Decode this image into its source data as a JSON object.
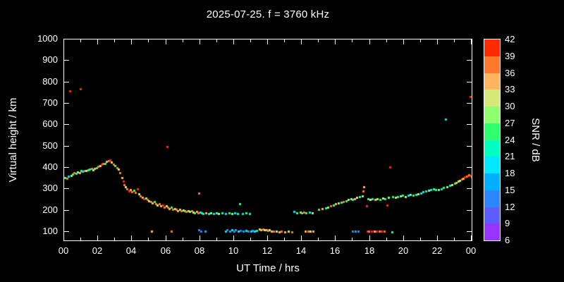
{
  "title": "2025-07-25. f = 3760 kHz",
  "colors": {
    "background": "#000000",
    "foreground": "#ffffff"
  },
  "x_axis": {
    "label": "UT Time / hrs",
    "tick_labels": [
      "00",
      "02",
      "04",
      "06",
      "08",
      "10",
      "12",
      "14",
      "16",
      "18",
      "20",
      "22",
      "00"
    ],
    "tick_hours": [
      0,
      2,
      4,
      6,
      8,
      10,
      12,
      14,
      16,
      18,
      20,
      22,
      24
    ],
    "minor_tick_hours": [
      1,
      3,
      5,
      7,
      9,
      11,
      13,
      15,
      17,
      19,
      21,
      23
    ],
    "range": [
      0,
      24
    ]
  },
  "y_axis": {
    "label": "Virtual height / km",
    "tick_values": [
      100,
      200,
      300,
      400,
      500,
      600,
      700,
      800,
      900,
      1000
    ],
    "range": [
      60,
      1000
    ]
  },
  "colorbar": {
    "label": "SNR / dB",
    "tick_values": [
      6,
      9,
      12,
      15,
      18,
      21,
      24,
      27,
      30,
      33,
      36,
      39,
      42
    ],
    "range": [
      6,
      42
    ],
    "segment_colors": [
      "#9933ff",
      "#5c5cff",
      "#2e86ff",
      "#00b0ff",
      "#00e8ff",
      "#00ffc0",
      "#2eff6e",
      "#90ff70",
      "#d6e87a",
      "#ffb45e",
      "#ff7a2e",
      "#ff2a00"
    ]
  },
  "chart_data": {
    "type": "scatter",
    "title": "2025-07-25. f = 3760 kHz",
    "xlabel": "UT Time / hrs",
    "ylabel": "Virtual height / km",
    "cblabel": "SNR / dB",
    "xlim": [
      0,
      24
    ],
    "ylim": [
      60,
      1000
    ],
    "snr_lim": [
      6,
      42
    ],
    "grid": false,
    "point_format": [
      "ut_hour",
      "virtual_height_km",
      "snr_db"
    ],
    "points": [
      [
        0.05,
        355,
        25
      ],
      [
        0.15,
        350,
        37
      ],
      [
        0.25,
        360,
        19
      ],
      [
        0.35,
        760,
        40
      ],
      [
        0.4,
        365,
        31
      ],
      [
        0.5,
        370,
        25
      ],
      [
        0.6,
        375,
        37
      ],
      [
        0.7,
        372,
        22
      ],
      [
        0.8,
        380,
        28
      ],
      [
        0.9,
        378,
        34
      ],
      [
        0.95,
        770,
        40
      ],
      [
        1.0,
        385,
        25
      ],
      [
        1.1,
        382,
        19
      ],
      [
        1.2,
        388,
        37
      ],
      [
        1.3,
        385,
        31
      ],
      [
        1.4,
        390,
        25
      ],
      [
        1.5,
        392,
        22
      ],
      [
        1.6,
        395,
        37
      ],
      [
        1.7,
        390,
        28
      ],
      [
        1.8,
        398,
        34
      ],
      [
        1.9,
        400,
        25
      ],
      [
        2.0,
        405,
        37
      ],
      [
        2.1,
        410,
        31
      ],
      [
        2.2,
        415,
        40
      ],
      [
        2.3,
        420,
        37
      ],
      [
        2.4,
        418,
        25
      ],
      [
        2.5,
        428,
        34
      ],
      [
        2.6,
        432,
        37
      ],
      [
        2.7,
        435,
        40
      ],
      [
        2.8,
        425,
        31
      ],
      [
        2.9,
        415,
        37
      ],
      [
        3.0,
        408,
        25
      ],
      [
        3.1,
        400,
        37
      ],
      [
        3.2,
        392,
        31
      ],
      [
        3.3,
        375,
        37
      ],
      [
        3.4,
        355,
        34
      ],
      [
        3.5,
        338,
        40
      ],
      [
        3.55,
        322,
        37
      ],
      [
        3.6,
        310,
        31
      ],
      [
        3.7,
        300,
        37
      ],
      [
        3.8,
        292,
        40
      ],
      [
        3.9,
        298,
        34
      ],
      [
        4.0,
        288,
        37
      ],
      [
        4.1,
        295,
        25
      ],
      [
        4.2,
        285,
        37
      ],
      [
        4.3,
        300,
        40
      ],
      [
        4.4,
        278,
        31
      ],
      [
        4.5,
        268,
        37
      ],
      [
        4.6,
        262,
        34
      ],
      [
        4.7,
        255,
        40
      ],
      [
        4.8,
        258,
        28
      ],
      [
        4.9,
        250,
        37
      ],
      [
        5.0,
        244,
        31
      ],
      [
        5.1,
        240,
        37
      ],
      [
        5.2,
        236,
        34
      ],
      [
        5.3,
        240,
        25
      ],
      [
        5.4,
        230,
        37
      ],
      [
        5.5,
        226,
        31
      ],
      [
        5.6,
        230,
        37
      ],
      [
        5.7,
        222,
        34
      ],
      [
        5.8,
        226,
        40
      ],
      [
        5.9,
        216,
        37
      ],
      [
        6.0,
        220,
        31
      ],
      [
        6.05,
        500,
        40
      ],
      [
        6.1,
        214,
        37
      ],
      [
        6.2,
        210,
        34
      ],
      [
        6.3,
        214,
        25
      ],
      [
        6.4,
        206,
        37
      ],
      [
        6.5,
        210,
        31
      ],
      [
        6.6,
        204,
        37
      ],
      [
        6.7,
        200,
        34
      ],
      [
        6.8,
        204,
        28
      ],
      [
        6.9,
        199,
        37
      ],
      [
        7.0,
        203,
        31
      ],
      [
        7.1,
        198,
        25
      ],
      [
        7.2,
        195,
        37
      ],
      [
        7.3,
        199,
        34
      ],
      [
        7.4,
        194,
        28
      ],
      [
        7.5,
        198,
        37
      ],
      [
        7.6,
        193,
        31
      ],
      [
        7.7,
        190,
        25
      ],
      [
        7.8,
        194,
        34
      ],
      [
        7.9,
        189,
        37
      ],
      [
        7.95,
        280,
        37
      ],
      [
        8.0,
        193,
        22
      ],
      [
        8.1,
        190,
        19
      ],
      [
        8.2,
        186,
        25
      ],
      [
        8.35,
        190,
        34
      ],
      [
        8.5,
        186,
        22
      ],
      [
        8.65,
        190,
        28
      ],
      [
        8.8,
        185,
        19
      ],
      [
        8.95,
        189,
        25
      ],
      [
        9.1,
        185,
        31
      ],
      [
        9.3,
        188,
        22
      ],
      [
        9.5,
        185,
        19
      ],
      [
        9.7,
        188,
        25
      ],
      [
        9.9,
        184,
        28
      ],
      [
        10.05,
        188,
        19
      ],
      [
        10.2,
        185,
        22
      ],
      [
        10.35,
        232,
        25
      ],
      [
        10.5,
        185,
        19
      ],
      [
        10.7,
        188,
        25
      ],
      [
        10.9,
        184,
        22
      ],
      [
        5.15,
        104,
        34
      ],
      [
        6.3,
        104,
        37
      ],
      [
        7.95,
        110,
        13
      ],
      [
        8.05,
        104,
        13
      ],
      [
        8.3,
        104,
        16
      ],
      [
        9.5,
        104,
        19
      ],
      [
        9.6,
        108,
        13
      ],
      [
        9.75,
        104,
        16
      ],
      [
        9.9,
        108,
        19
      ],
      [
        10.0,
        104,
        13
      ],
      [
        10.1,
        108,
        16
      ],
      [
        10.25,
        104,
        19
      ],
      [
        10.4,
        106,
        13
      ],
      [
        10.55,
        104,
        16
      ],
      [
        10.7,
        107,
        19
      ],
      [
        10.85,
        104,
        13
      ],
      [
        11.0,
        104,
        19
      ],
      [
        11.1,
        107,
        16
      ],
      [
        11.2,
        104,
        19
      ],
      [
        11.35,
        106,
        22
      ],
      [
        11.5,
        114,
        31
      ],
      [
        11.6,
        110,
        34
      ],
      [
        11.7,
        112,
        37
      ],
      [
        11.8,
        108,
        31
      ],
      [
        11.9,
        110,
        34
      ],
      [
        12.0,
        106,
        37
      ],
      [
        12.1,
        108,
        31
      ],
      [
        12.2,
        104,
        34
      ],
      [
        12.35,
        102,
        37
      ],
      [
        12.5,
        104,
        31
      ],
      [
        12.65,
        100,
        34
      ],
      [
        12.8,
        102,
        37
      ],
      [
        13.0,
        100,
        34
      ],
      [
        13.2,
        102,
        31
      ],
      [
        13.4,
        100,
        37
      ],
      [
        14.2,
        104,
        34
      ],
      [
        14.35,
        102,
        37
      ],
      [
        14.5,
        104,
        31
      ],
      [
        14.65,
        102,
        34
      ],
      [
        17.0,
        104,
        13
      ],
      [
        17.15,
        102,
        16
      ],
      [
        17.3,
        104,
        13
      ],
      [
        17.85,
        104,
        40
      ],
      [
        17.95,
        102,
        37
      ],
      [
        18.1,
        104,
        40
      ],
      [
        18.25,
        102,
        34
      ],
      [
        18.4,
        104,
        40
      ],
      [
        18.55,
        102,
        37
      ],
      [
        18.7,
        104,
        40
      ],
      [
        18.85,
        102,
        37
      ],
      [
        19.3,
        100,
        25
      ],
      [
        13.55,
        194,
        19
      ],
      [
        13.7,
        190,
        25
      ],
      [
        13.9,
        192,
        34
      ],
      [
        14.0,
        188,
        22
      ],
      [
        14.1,
        192,
        37
      ],
      [
        14.25,
        188,
        25
      ],
      [
        14.45,
        192,
        19
      ],
      [
        14.6,
        190,
        31
      ],
      [
        15.0,
        204,
        25
      ],
      [
        15.2,
        208,
        34
      ],
      [
        15.4,
        212,
        22
      ],
      [
        15.55,
        216,
        28
      ],
      [
        15.7,
        220,
        37
      ],
      [
        15.85,
        224,
        25
      ],
      [
        16.0,
        230,
        34
      ],
      [
        16.15,
        234,
        28
      ],
      [
        16.3,
        238,
        22
      ],
      [
        16.45,
        242,
        37
      ],
      [
        16.6,
        246,
        25
      ],
      [
        16.75,
        250,
        31
      ],
      [
        16.9,
        254,
        28
      ],
      [
        17.0,
        250,
        22
      ],
      [
        17.1,
        256,
        34
      ],
      [
        17.25,
        260,
        31
      ],
      [
        17.4,
        264,
        25
      ],
      [
        17.55,
        268,
        28
      ],
      [
        17.6,
        292,
        37
      ],
      [
        17.65,
        312,
        34
      ],
      [
        17.8,
        222,
        40
      ],
      [
        17.9,
        256,
        25
      ],
      [
        18.0,
        250,
        31
      ],
      [
        18.15,
        254,
        22
      ],
      [
        18.3,
        250,
        34
      ],
      [
        18.45,
        256,
        28
      ],
      [
        18.6,
        252,
        25
      ],
      [
        18.75,
        258,
        31
      ],
      [
        18.9,
        254,
        22
      ],
      [
        19.0,
        226,
        40
      ],
      [
        19.1,
        260,
        28
      ],
      [
        19.2,
        402,
        40
      ],
      [
        19.35,
        264,
        25
      ],
      [
        19.5,
        260,
        31
      ],
      [
        19.65,
        266,
        22
      ],
      [
        19.8,
        268,
        28
      ],
      [
        19.95,
        272,
        25
      ],
      [
        20.1,
        266,
        31
      ],
      [
        20.25,
        272,
        19
      ],
      [
        20.4,
        276,
        28
      ],
      [
        20.55,
        270,
        25
      ],
      [
        20.7,
        276,
        22
      ],
      [
        20.85,
        278,
        31
      ],
      [
        21.0,
        282,
        19
      ],
      [
        21.15,
        286,
        25
      ],
      [
        21.3,
        290,
        22
      ],
      [
        21.45,
        294,
        28
      ],
      [
        21.6,
        296,
        19
      ],
      [
        21.75,
        300,
        25
      ],
      [
        21.9,
        298,
        22
      ],
      [
        22.05,
        296,
        28
      ],
      [
        22.2,
        302,
        19
      ],
      [
        22.35,
        306,
        25
      ],
      [
        22.45,
        628,
        19
      ],
      [
        22.55,
        312,
        28
      ],
      [
        22.7,
        316,
        22
      ],
      [
        22.85,
        320,
        31
      ],
      [
        23.0,
        326,
        25
      ],
      [
        23.1,
        330,
        34
      ],
      [
        23.2,
        336,
        28
      ],
      [
        23.3,
        340,
        31
      ],
      [
        23.4,
        346,
        37
      ],
      [
        23.5,
        350,
        34
      ],
      [
        23.6,
        356,
        40
      ],
      [
        23.7,
        360,
        37
      ],
      [
        23.8,
        364,
        40
      ],
      [
        23.85,
        368,
        37
      ],
      [
        23.9,
        732,
        40
      ],
      [
        23.95,
        362,
        40
      ],
      [
        24.0,
        358,
        37
      ]
    ]
  }
}
